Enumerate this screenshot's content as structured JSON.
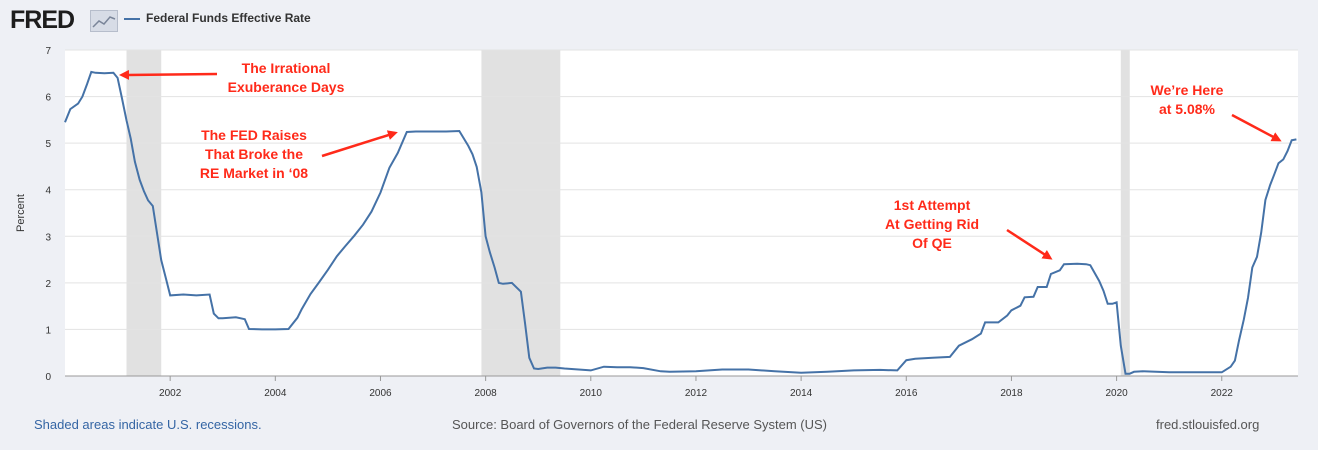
{
  "header": {
    "logo_text": "FRED",
    "logo_icon": "chart-line-icon",
    "legend_label": "Federal Funds Effective Rate",
    "series_color": "#4572a7"
  },
  "footer": {
    "recessions_note": "Shaded areas indicate U.S. recessions.",
    "source": "Source: Board of Governors of the Federal Reserve System (US)",
    "site": "fred.stlouisfed.org"
  },
  "chart_data": {
    "type": "line",
    "title": "",
    "xlabel": "",
    "ylabel": "Percent",
    "xlim": [
      2000.0,
      2023.45
    ],
    "ylim": [
      0,
      7
    ],
    "x_ticks": [
      "2002",
      "2004",
      "2006",
      "2008",
      "2010",
      "2012",
      "2014",
      "2016",
      "2018",
      "2020",
      "2022"
    ],
    "y_ticks": [
      "0",
      "1",
      "2",
      "3",
      "4",
      "5",
      "6",
      "7"
    ],
    "grid": true,
    "recessions": [
      [
        2001.17,
        2001.83
      ],
      [
        2007.92,
        2009.42
      ],
      [
        2020.08,
        2020.25
      ]
    ],
    "series": [
      {
        "name": "Federal Funds Effective Rate",
        "x": [
          2000.0,
          2000.1,
          2000.25,
          2000.33,
          2000.42,
          2000.5,
          2000.58,
          2000.75,
          2000.92,
          2001.0,
          2001.08,
          2001.17,
          2001.25,
          2001.33,
          2001.42,
          2001.5,
          2001.58,
          2001.67,
          2001.75,
          2001.83,
          2001.92,
          2002.0,
          2002.25,
          2002.5,
          2002.75,
          2002.83,
          2002.92,
          2003.0,
          2003.25,
          2003.42,
          2003.5,
          2003.75,
          2004.0,
          2004.25,
          2004.42,
          2004.5,
          2004.67,
          2004.83,
          2005.0,
          2005.17,
          2005.33,
          2005.5,
          2005.67,
          2005.83,
          2006.0,
          2006.17,
          2006.33,
          2006.5,
          2006.67,
          2007.0,
          2007.25,
          2007.5,
          2007.67,
          2007.75,
          2007.83,
          2007.92,
          2008.0,
          2008.08,
          2008.17,
          2008.25,
          2008.33,
          2008.5,
          2008.67,
          2008.75,
          2008.83,
          2008.92,
          2009.0,
          2009.17,
          2009.33,
          2009.5,
          2010.0,
          2010.25,
          2010.5,
          2010.75,
          2011.0,
          2011.33,
          2011.5,
          2012.0,
          2012.5,
          2013.0,
          2013.5,
          2014.0,
          2014.5,
          2015.0,
          2015.5,
          2015.83,
          2016.0,
          2016.17,
          2016.5,
          2016.83,
          2017.0,
          2017.25,
          2017.42,
          2017.5,
          2017.75,
          2017.92,
          2018.0,
          2018.17,
          2018.25,
          2018.42,
          2018.5,
          2018.67,
          2018.75,
          2018.92,
          2019.0,
          2019.25,
          2019.42,
          2019.5,
          2019.67,
          2019.75,
          2019.83,
          2019.92,
          2020.0,
          2020.08,
          2020.17,
          2020.25,
          2020.33,
          2020.5,
          2021.0,
          2021.5,
          2022.0,
          2022.17,
          2022.25,
          2022.33,
          2022.42,
          2022.5,
          2022.58,
          2022.67,
          2022.75,
          2022.83,
          2022.92,
          2023.0,
          2023.08,
          2023.17,
          2023.25,
          2023.33,
          2023.42
        ],
        "values": [
          5.45,
          5.73,
          5.85,
          6.0,
          6.27,
          6.53,
          6.51,
          6.5,
          6.51,
          6.4,
          5.98,
          5.49,
          5.1,
          4.6,
          4.21,
          3.97,
          3.77,
          3.65,
          3.07,
          2.49,
          2.09,
          1.73,
          1.75,
          1.73,
          1.75,
          1.34,
          1.24,
          1.24,
          1.26,
          1.22,
          1.01,
          1.0,
          1.0,
          1.01,
          1.25,
          1.43,
          1.76,
          2.01,
          2.28,
          2.57,
          2.79,
          3.01,
          3.25,
          3.53,
          3.94,
          4.47,
          4.79,
          5.24,
          5.25,
          5.25,
          5.25,
          5.26,
          4.94,
          4.76,
          4.49,
          3.94,
          3.0,
          2.66,
          2.33,
          2.0,
          1.98,
          2.0,
          1.81,
          1.12,
          0.39,
          0.16,
          0.15,
          0.18,
          0.18,
          0.16,
          0.12,
          0.2,
          0.19,
          0.19,
          0.17,
          0.1,
          0.09,
          0.1,
          0.14,
          0.14,
          0.1,
          0.07,
          0.09,
          0.12,
          0.13,
          0.12,
          0.34,
          0.37,
          0.39,
          0.41,
          0.65,
          0.79,
          0.91,
          1.15,
          1.15,
          1.3,
          1.41,
          1.51,
          1.69,
          1.7,
          1.91,
          1.91,
          2.19,
          2.27,
          2.4,
          2.41,
          2.4,
          2.38,
          2.04,
          1.83,
          1.55,
          1.55,
          1.58,
          0.65,
          0.05,
          0.05,
          0.09,
          0.1,
          0.08,
          0.08,
          0.08,
          0.2,
          0.33,
          0.77,
          1.21,
          1.68,
          2.33,
          2.56,
          3.08,
          3.78,
          4.1,
          4.33,
          4.57,
          4.65,
          4.83,
          5.06,
          5.08
        ]
      }
    ],
    "annotations": [
      {
        "lines": [
          "The Irrational",
          "Exuberance Days"
        ]
      },
      {
        "lines": [
          "The FED Raises",
          "That Broke the",
          "RE Market in ‘08"
        ]
      },
      {
        "lines": [
          "1st Attempt",
          "At Getting Rid",
          "Of QE"
        ]
      },
      {
        "lines": [
          "We’re Here",
          "at 5.08%"
        ]
      }
    ],
    "annotation_color": "#ff2a1a"
  }
}
